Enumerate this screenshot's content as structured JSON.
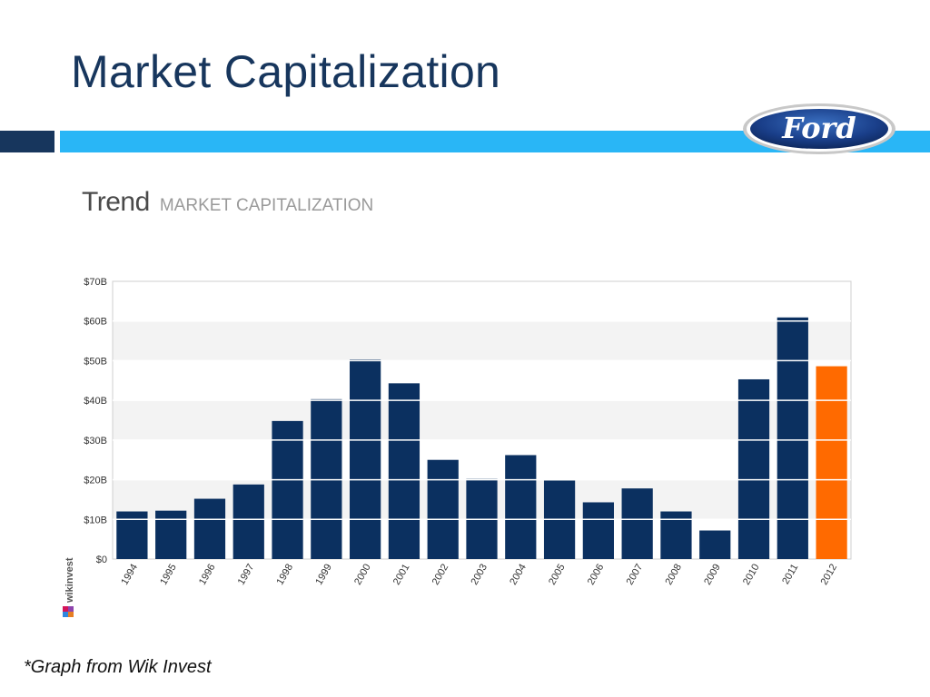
{
  "slide": {
    "title": "Market Capitalization",
    "footnote": "*Graph from Wik Invest"
  },
  "logo": {
    "text": "Ford"
  },
  "chart_header": {
    "trend": "Trend",
    "subtitle": "MARKET CAPITALIZATION"
  },
  "watermark": {
    "text": "wikinvest"
  },
  "colors": {
    "title": "#17365d",
    "accent_dark": "#17365d",
    "accent_light": "#29b6f6",
    "bar": "#0b3060",
    "highlight_bar": "#ff6a00"
  },
  "chart_data": {
    "type": "bar",
    "title": "MARKET CAPITALIZATION",
    "categories": [
      "1994",
      "1995",
      "1996",
      "1997",
      "1998",
      "1999",
      "2000",
      "2001",
      "2002",
      "2003",
      "2004",
      "2005",
      "2006",
      "2007",
      "2008",
      "2009",
      "2010",
      "2011",
      "2012"
    ],
    "values": [
      12,
      12.2,
      15.2,
      18.8,
      34.8,
      40.3,
      50.3,
      44.3,
      25,
      20.2,
      26.2,
      19.8,
      14.3,
      17.8,
      12,
      7.2,
      45.3,
      60.9,
      48.6
    ],
    "highlight_index": 18,
    "ylim": [
      0,
      70
    ],
    "yticks": [
      "$0",
      "$10B",
      "$20B",
      "$30B",
      "$40B",
      "$50B",
      "$60B",
      "$70B"
    ],
    "ytick_values": [
      0,
      10,
      20,
      30,
      40,
      50,
      60,
      70
    ],
    "grid": true
  }
}
